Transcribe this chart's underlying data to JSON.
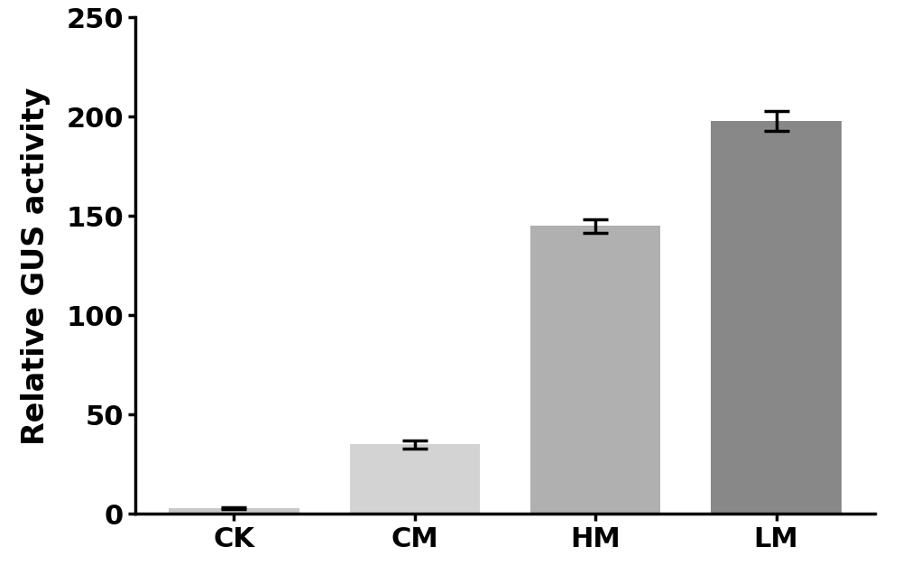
{
  "categories": [
    "CK",
    "CM",
    "HM",
    "LM"
  ],
  "values": [
    3.0,
    35.0,
    145.0,
    198.0
  ],
  "errors": [
    0.5,
    2.0,
    3.5,
    5.0
  ],
  "bar_colors": [
    "#c8c8c8",
    "#d3d3d3",
    "#b0b0b0",
    "#888888"
  ],
  "ylabel": "Relative GUS activity",
  "ylim": [
    0,
    250
  ],
  "yticks": [
    0,
    50,
    100,
    150,
    200,
    250
  ],
  "background_color": "#ffffff",
  "bar_width": 0.72,
  "ylabel_fontsize": 24,
  "tick_fontsize": 22,
  "xlabel_fontsize": 22,
  "spine_linewidth": 2.5,
  "capsize": 10,
  "elinewidth": 2.5,
  "capthick": 2.5
}
